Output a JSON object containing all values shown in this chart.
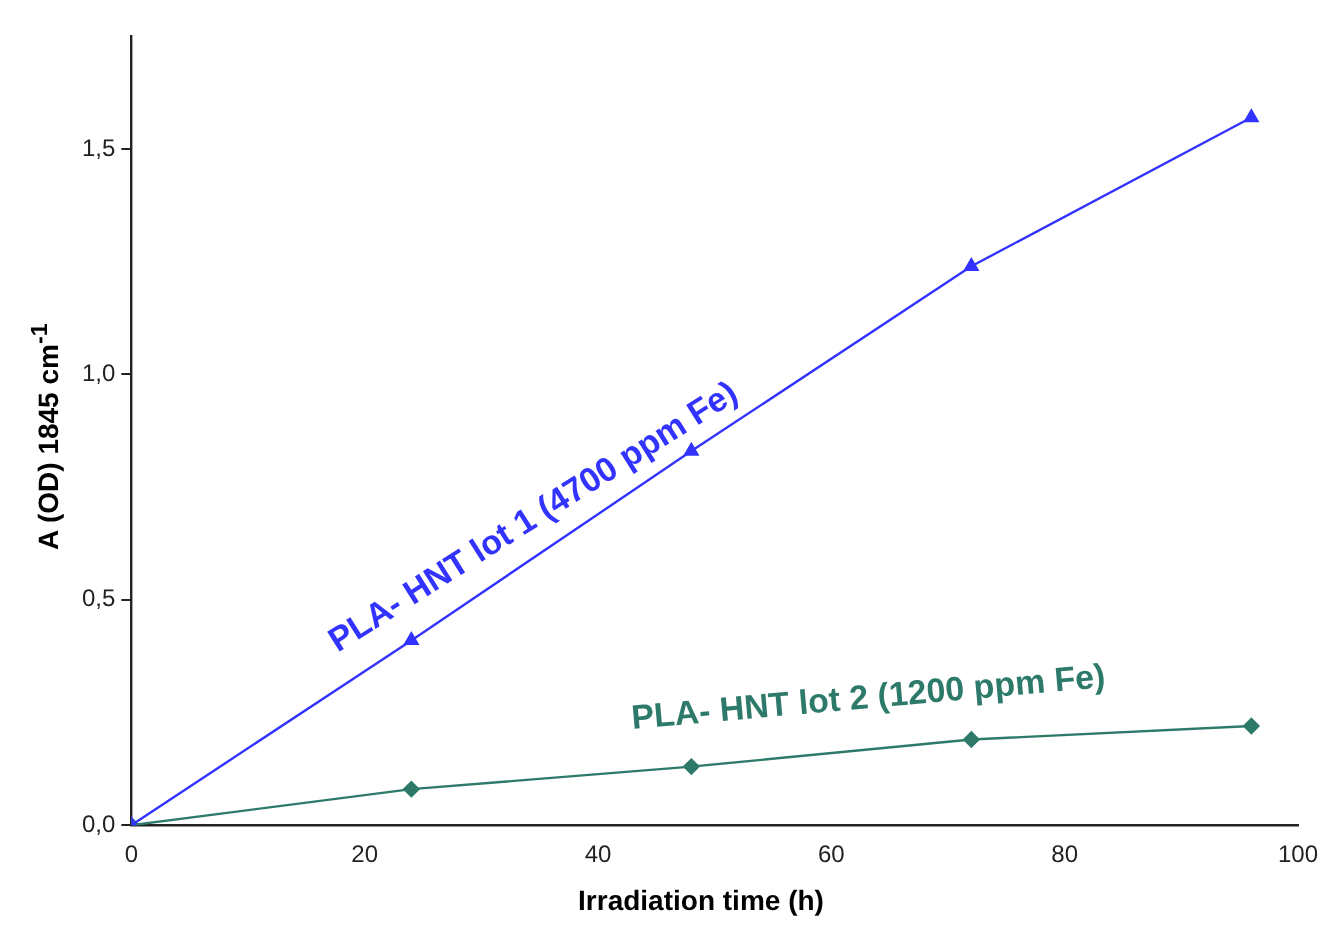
{
  "chart_data": {
    "type": "line",
    "xlabel": "Irradiation time (h)",
    "ylabel": "A  (OD) 1845 cm$^{-1}$",
    "x": [
      0,
      24,
      48,
      72,
      96
    ],
    "series": [
      {
        "name": "PLA- HNT lot 1 (4700 ppm Fe)",
        "color": "#3333ff",
        "marker": "triangle",
        "values": [
          0,
          0.41,
          0.83,
          1.24,
          1.57
        ]
      },
      {
        "name": "PLA- HNT lot 2 (1200 ppm Fe)",
        "color": "#2e7a6a",
        "marker": "diamond",
        "values": [
          0,
          0.08,
          0.13,
          0.19,
          0.22
        ]
      }
    ],
    "xlim": [
      0,
      100
    ],
    "xticks": [
      0,
      20,
      40,
      60,
      80,
      100
    ],
    "ylim": [
      0,
      1.75
    ],
    "yticks": [
      {
        "value": 0,
        "label": "0,0"
      },
      {
        "value": 0.5,
        "label": "0,5"
      },
      {
        "value": 1,
        "label": "1,0"
      },
      {
        "value": 1.5,
        "label": "1,5"
      }
    ],
    "grid": false,
    "legend": false
  }
}
